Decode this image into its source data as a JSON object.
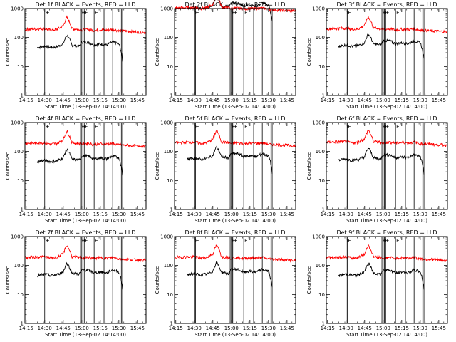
{
  "panel_titles": [
    "Det 1f BLACK = Events, RED = LLD",
    "Det 2f BLACK = Events, RED = LLD",
    "Det 3f BLACK = Events, RED = LLD",
    "Det 4f BLACK = Events, RED = LLD",
    "Det 5f BLACK = Events, RED = LLD",
    "Det 6f BLACK = Events, RED = LLD",
    "Det 7f BLACK = Events, RED = LLD",
    "Det 8f BLACK = Events, RED = LLD",
    "Det 9f BLACK = Events, RED = LLD"
  ],
  "colors": {
    "events": "#000000",
    "lld": "#ff0000",
    "background": "#ffffff"
  },
  "chart_data": {
    "type": "line",
    "grid": "3x3 small multiples",
    "xlabel": "Start Time (13-Sep-02 14:14:00)",
    "ylabel": "Counts/sec",
    "x_ticks": [
      "14:15",
      "14:30",
      "14:45",
      "15:00",
      "15:15",
      "15:30",
      "15:45"
    ],
    "xlim": [
      "14:14",
      "15:52"
    ],
    "y_scale": "log",
    "ylim": [
      1,
      1000
    ],
    "y_ticks": [
      "1",
      "10",
      "100",
      "1000"
    ],
    "vertical_markers": [
      "14:30",
      "14:31",
      "14:59",
      "15:00",
      "15:01",
      "15:02",
      "15:10",
      "15:18",
      "15:25",
      "15:32",
      "15:33"
    ],
    "marker_flags": [
      "E",
      "F",
      "F",
      "F",
      "F",
      "F",
      "E"
    ],
    "series": [
      {
        "name": "Events",
        "color": "#000000",
        "x": [
          "14:24",
          "14:30",
          "14:35",
          "14:40",
          "14:45",
          "14:48",
          "14:52",
          "14:58",
          "15:00",
          "15:05",
          "15:10",
          "15:15",
          "15:20",
          "15:25",
          "15:30",
          "15:33"
        ],
        "values": [
          45,
          50,
          45,
          48,
          60,
          120,
          55,
          50,
          70,
          70,
          55,
          60,
          55,
          70,
          60,
          15
        ]
      },
      {
        "name": "LLD",
        "color": "#ff0000",
        "x": [
          "14:14",
          "14:30",
          "14:35",
          "14:40",
          "14:45",
          "14:48",
          "14:52",
          "14:58",
          "15:00",
          "15:05",
          "15:10",
          "15:15",
          "15:20",
          "15:25",
          "15:30",
          "15:40",
          "15:52"
        ],
        "values": [
          190,
          200,
          180,
          190,
          250,
          500,
          200,
          190,
          180,
          190,
          175,
          185,
          180,
          190,
          170,
          160,
          150
        ]
      }
    ],
    "panels": [
      {
        "detector": "1f",
        "events_scale": 1.0,
        "lld_scale": 1.0
      },
      {
        "detector": "2f",
        "events_scale": 22.0,
        "lld_scale": 5.5
      },
      {
        "detector": "3f",
        "events_scale": 1.1,
        "lld_scale": 1.05
      },
      {
        "detector": "4f",
        "events_scale": 1.0,
        "lld_scale": 1.0
      },
      {
        "detector": "5f",
        "events_scale": 1.2,
        "lld_scale": 1.05
      },
      {
        "detector": "6f",
        "events_scale": 1.1,
        "lld_scale": 1.1
      },
      {
        "detector": "7f",
        "events_scale": 1.0,
        "lld_scale": 1.0
      },
      {
        "detector": "8f",
        "events_scale": 1.05,
        "lld_scale": 1.0
      },
      {
        "detector": "9f",
        "events_scale": 1.0,
        "lld_scale": 1.0
      }
    ]
  }
}
